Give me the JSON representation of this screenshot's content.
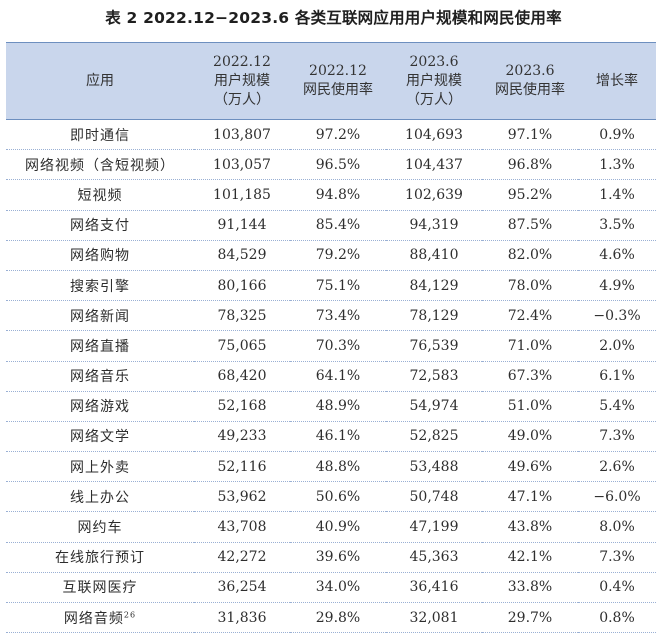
{
  "title": "表 2  2022.12−2023.6 各类互联网应用用户规模和网民使用率",
  "headers": {
    "app": "应用",
    "users_2212": [
      "2022.12",
      "用户规模",
      "（万人）"
    ],
    "rate_2212": [
      "2022.12",
      "网民使用率"
    ],
    "users_2306": [
      "2023.6",
      "用户规模",
      "（万人）"
    ],
    "rate_2306": [
      "2023.6",
      "网民使用率"
    ],
    "growth": "增长率"
  },
  "rows": [
    {
      "app": "即时通信",
      "u1": "103,807",
      "r1": "97.2%",
      "u2": "104,693",
      "r2": "97.1%",
      "g": "0.9%"
    },
    {
      "app": "网络视频（含短视频）",
      "u1": "103,057",
      "r1": "96.5%",
      "u2": "104,437",
      "r2": "96.8%",
      "g": "1.3%"
    },
    {
      "app": "短视频",
      "u1": "101,185",
      "r1": "94.8%",
      "u2": "102,639",
      "r2": "95.2%",
      "g": "1.4%"
    },
    {
      "app": "网络支付",
      "u1": "91,144",
      "r1": "85.4%",
      "u2": "94,319",
      "r2": "87.5%",
      "g": "3.5%"
    },
    {
      "app": "网络购物",
      "u1": "84,529",
      "r1": "79.2%",
      "u2": "88,410",
      "r2": "82.0%",
      "g": "4.6%"
    },
    {
      "app": "搜索引擎",
      "u1": "80,166",
      "r1": "75.1%",
      "u2": "84,129",
      "r2": "78.0%",
      "g": "4.9%"
    },
    {
      "app": "网络新闻",
      "u1": "78,325",
      "r1": "73.4%",
      "u2": "78,129",
      "r2": "72.4%",
      "g": "−0.3%"
    },
    {
      "app": "网络直播",
      "u1": "75,065",
      "r1": "70.3%",
      "u2": "76,539",
      "r2": "71.0%",
      "g": "2.0%"
    },
    {
      "app": "网络音乐",
      "u1": "68,420",
      "r1": "64.1%",
      "u2": "72,583",
      "r2": "67.3%",
      "g": "6.1%"
    },
    {
      "app": "网络游戏",
      "u1": "52,168",
      "r1": "48.9%",
      "u2": "54,974",
      "r2": "51.0%",
      "g": "5.4%"
    },
    {
      "app": "网络文学",
      "u1": "49,233",
      "r1": "46.1%",
      "u2": "52,825",
      "r2": "49.0%",
      "g": "7.3%"
    },
    {
      "app": "网上外卖",
      "u1": "52,116",
      "r1": "48.8%",
      "u2": "53,488",
      "r2": "49.6%",
      "g": "2.6%"
    },
    {
      "app": "线上办公",
      "u1": "53,962",
      "r1": "50.6%",
      "u2": "50,748",
      "r2": "47.1%",
      "g": "−6.0%"
    },
    {
      "app": "网约车",
      "u1": "43,708",
      "r1": "40.9%",
      "u2": "47,199",
      "r2": "43.8%",
      "g": "8.0%"
    },
    {
      "app": "在线旅行预订",
      "u1": "42,272",
      "r1": "39.6%",
      "u2": "45,363",
      "r2": "42.1%",
      "g": "7.3%"
    },
    {
      "app": "互联网医疗",
      "u1": "36,254",
      "r1": "34.0%",
      "u2": "36,416",
      "r2": "33.8%",
      "g": "0.4%"
    },
    {
      "app": "网络音频",
      "footnote": "26",
      "u1": "31,836",
      "r1": "29.8%",
      "u2": "32,081",
      "r2": "29.7%",
      "g": "0.8%"
    }
  ]
}
